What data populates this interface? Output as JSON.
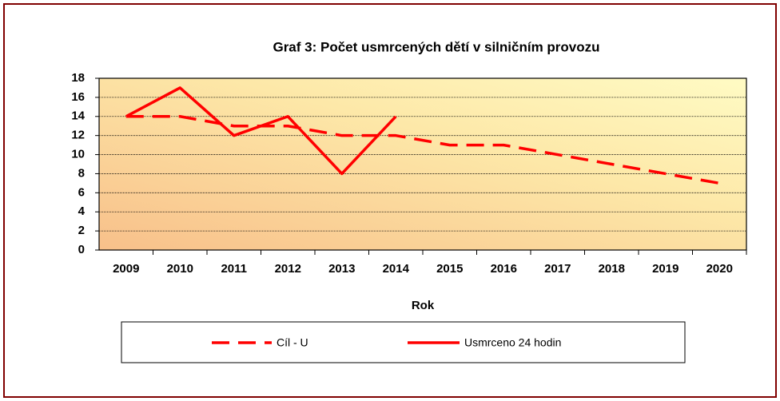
{
  "chart_data": {
    "type": "line",
    "title": "Graf 3: Počet usmrcených  dětí v silničním provozu",
    "x_label": "Rok",
    "categories": [
      "2009",
      "2010",
      "2011",
      "2012",
      "2013",
      "2014",
      "2015",
      "2016",
      "2017",
      "2018",
      "2019",
      "2020"
    ],
    "series": [
      {
        "name": "Cíl - U",
        "color": "#ff0000",
        "dashed": true,
        "values": [
          14,
          14,
          13,
          13,
          12,
          12,
          11,
          11,
          10,
          9,
          8,
          7
        ]
      },
      {
        "name": "Usmrceno 24 hodin",
        "color": "#ff0000",
        "dashed": false,
        "values": [
          14,
          17,
          12,
          14,
          8,
          14,
          null,
          null,
          null,
          null,
          null,
          null
        ]
      }
    ],
    "ylim": [
      0,
      18
    ],
    "yticks": [
      0,
      2,
      4,
      6,
      8,
      10,
      12,
      14,
      16,
      18
    ],
    "grid": true,
    "legend": "bottom"
  }
}
